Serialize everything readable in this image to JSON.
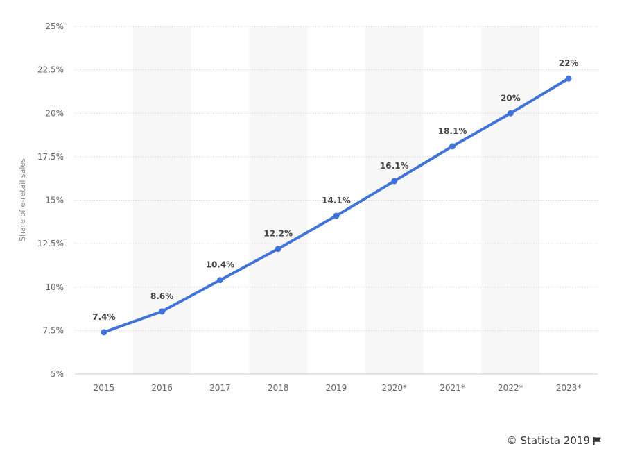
{
  "chart_data": {
    "type": "line",
    "categories": [
      "2015",
      "2016",
      "2017",
      "2018",
      "2019",
      "2020*",
      "2021*",
      "2022*",
      "2023*"
    ],
    "series": [
      {
        "values": [
          7.4,
          8.6,
          10.4,
          12.2,
          14.1,
          16.1,
          18.1,
          20,
          22
        ],
        "labels": [
          "7.4%",
          "8.6%",
          "10.4%",
          "12.2%",
          "14.1%",
          "16.1%",
          "18.1%",
          "20%",
          "22%"
        ],
        "color": "#4174d9"
      }
    ],
    "ylabel": "Share of e-retail sales",
    "ylim": [
      5,
      25
    ],
    "yticks": [
      5,
      7.5,
      10,
      12.5,
      15,
      17.5,
      20,
      22.5,
      25
    ],
    "ytick_labels": [
      "5%",
      "7.5%",
      "10%",
      "12.5%",
      "15%",
      "17.5%",
      "20%",
      "22.5%",
      "25%"
    ],
    "grid": "horizontal dotted",
    "band_color": "#f7f7f7"
  },
  "credit": {
    "text": "© Statista 2019",
    "icon": "flag-icon"
  }
}
